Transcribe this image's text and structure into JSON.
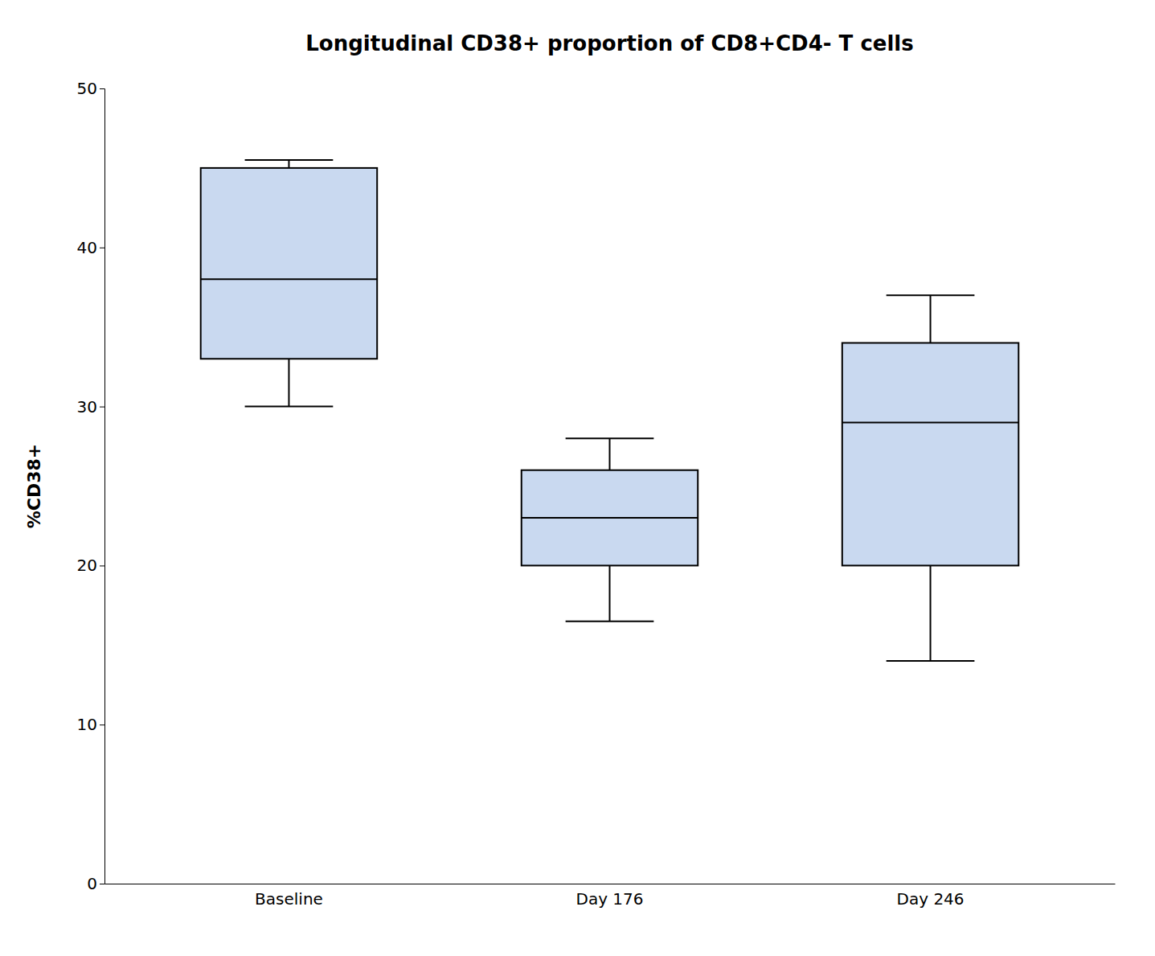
{
  "chart_data": {
    "type": "box",
    "title": "Longitudinal CD38+ proportion of CD8+CD4- T cells",
    "ylabel": "%CD38+",
    "categories": [
      "Baseline",
      "Day 176",
      "Day 246"
    ],
    "boxes": [
      {
        "whislo": 30.0,
        "q1": 33.0,
        "med": 38.0,
        "q3": 45.0,
        "whishi": 45.5
      },
      {
        "whislo": 16.5,
        "q1": 20.0,
        "med": 23.0,
        "q3": 26.0,
        "whishi": 28.0
      },
      {
        "whislo": 14.0,
        "q1": 20.0,
        "med": 29.0,
        "q3": 34.0,
        "whishi": 37.0
      }
    ],
    "color": "#c9d9f0",
    "ylim": [
      0,
      50
    ],
    "yticks": [
      0,
      10,
      20,
      30,
      40,
      50
    ],
    "grid": false
  }
}
